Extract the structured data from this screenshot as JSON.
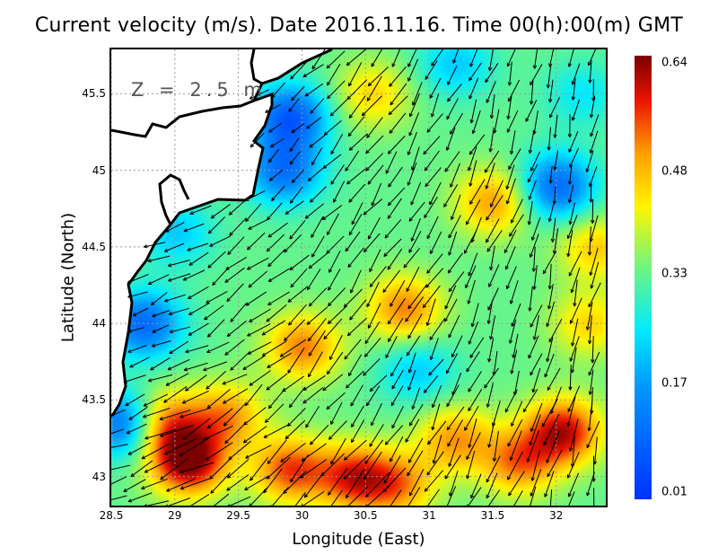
{
  "title": "Current velocity (m/s). Date 2016.11.16. Time 00(h):00(m) GMT",
  "annotation": "Z = 2.5 m",
  "chart_data": {
    "type": "heatmap",
    "title": "Current velocity (m/s). Date 2016.11.16. Time 00(h):00(m) GMT",
    "xlabel": "Longitude (East)",
    "ylabel": "Latitude (North)",
    "xlim": [
      28.5,
      32.39
    ],
    "ylim": [
      42.81,
      45.79
    ],
    "xticks": [
      "28.5",
      "29",
      "29.5",
      "30",
      "30.5",
      "31",
      "31.5",
      "32"
    ],
    "yticks": [
      "43",
      "43.5",
      "44",
      "44.5",
      "45",
      "45.5"
    ],
    "grid": true,
    "colorbar": {
      "min": 0.01,
      "max": 0.64,
      "ticks": [
        "0.01",
        "0.17",
        "0.33",
        "0.48",
        "0.64"
      ],
      "colormap": "jet"
    },
    "background_speed": 0.33,
    "speed_features": [
      {
        "lon": 29.1,
        "lat": 43.1,
        "speed": 0.64
      },
      {
        "lon": 28.9,
        "lat": 43.35,
        "speed": 0.55
      },
      {
        "lon": 29.4,
        "lat": 43.4,
        "speed": 0.5
      },
      {
        "lon": 29.9,
        "lat": 43.05,
        "speed": 0.55
      },
      {
        "lon": 30.4,
        "lat": 43.0,
        "speed": 0.56
      },
      {
        "lon": 30.75,
        "lat": 42.95,
        "speed": 0.5
      },
      {
        "lon": 30.0,
        "lat": 43.85,
        "speed": 0.52
      },
      {
        "lon": 30.8,
        "lat": 44.1,
        "speed": 0.52
      },
      {
        "lon": 31.5,
        "lat": 44.8,
        "speed": 0.5
      },
      {
        "lon": 32.05,
        "lat": 43.3,
        "speed": 0.6
      },
      {
        "lon": 31.7,
        "lat": 43.1,
        "speed": 0.52
      },
      {
        "lon": 31.2,
        "lat": 43.25,
        "speed": 0.5
      },
      {
        "lon": 32.25,
        "lat": 44.0,
        "speed": 0.45
      },
      {
        "lon": 32.3,
        "lat": 44.5,
        "speed": 0.46
      },
      {
        "lon": 30.55,
        "lat": 45.5,
        "speed": 0.45
      },
      {
        "lon": 29.9,
        "lat": 45.35,
        "speed": 0.08
      },
      {
        "lon": 29.85,
        "lat": 45.0,
        "speed": 0.12
      },
      {
        "lon": 28.75,
        "lat": 44.0,
        "speed": 0.1
      },
      {
        "lon": 28.6,
        "lat": 43.35,
        "speed": 0.08
      },
      {
        "lon": 32.0,
        "lat": 44.9,
        "speed": 0.1
      },
      {
        "lon": 30.9,
        "lat": 43.7,
        "speed": 0.22
      },
      {
        "lon": 29.0,
        "lat": 44.6,
        "speed": 0.22
      },
      {
        "lon": 31.2,
        "lat": 45.7,
        "speed": 0.22
      },
      {
        "lon": 32.2,
        "lat": 45.5,
        "speed": 0.25
      }
    ],
    "flow_direction": "predominantly south-westward"
  }
}
